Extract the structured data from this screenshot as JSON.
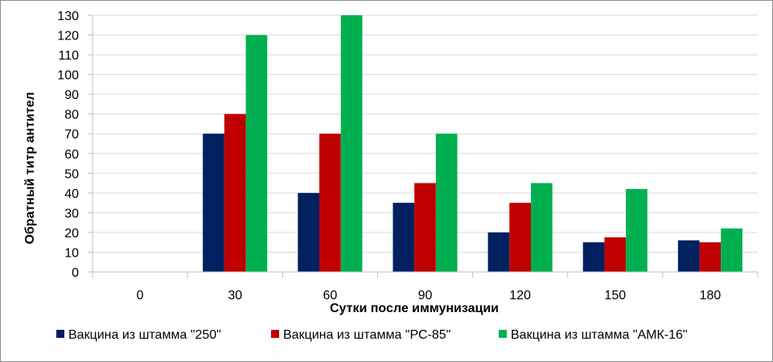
{
  "chart_data": {
    "type": "bar",
    "categories": [
      "0",
      "30",
      "60",
      "90",
      "120",
      "150",
      "180"
    ],
    "series": [
      {
        "name": "Вакцина из штамма \"250\"",
        "color": "#002060",
        "values": [
          0,
          70,
          40,
          35,
          20,
          15,
          16
        ]
      },
      {
        "name": "Вакцина из штамма \"РС-85\"",
        "color": "#c00000",
        "values": [
          0,
          80,
          70,
          45,
          35,
          17.5,
          15
        ]
      },
      {
        "name": "Вакцина из штамма \"АМК-16\"",
        "color": "#00b050",
        "values": [
          0,
          120,
          130,
          70,
          45,
          42,
          22
        ]
      }
    ],
    "xlabel": "Сутки после иммунизации",
    "ylabel": "Обратный титр  антител",
    "ylim": [
      0,
      130
    ],
    "yticks": [
      0,
      10,
      20,
      30,
      40,
      50,
      60,
      70,
      80,
      90,
      100,
      110,
      120,
      130
    ],
    "grid": true,
    "legend": "bottom"
  }
}
